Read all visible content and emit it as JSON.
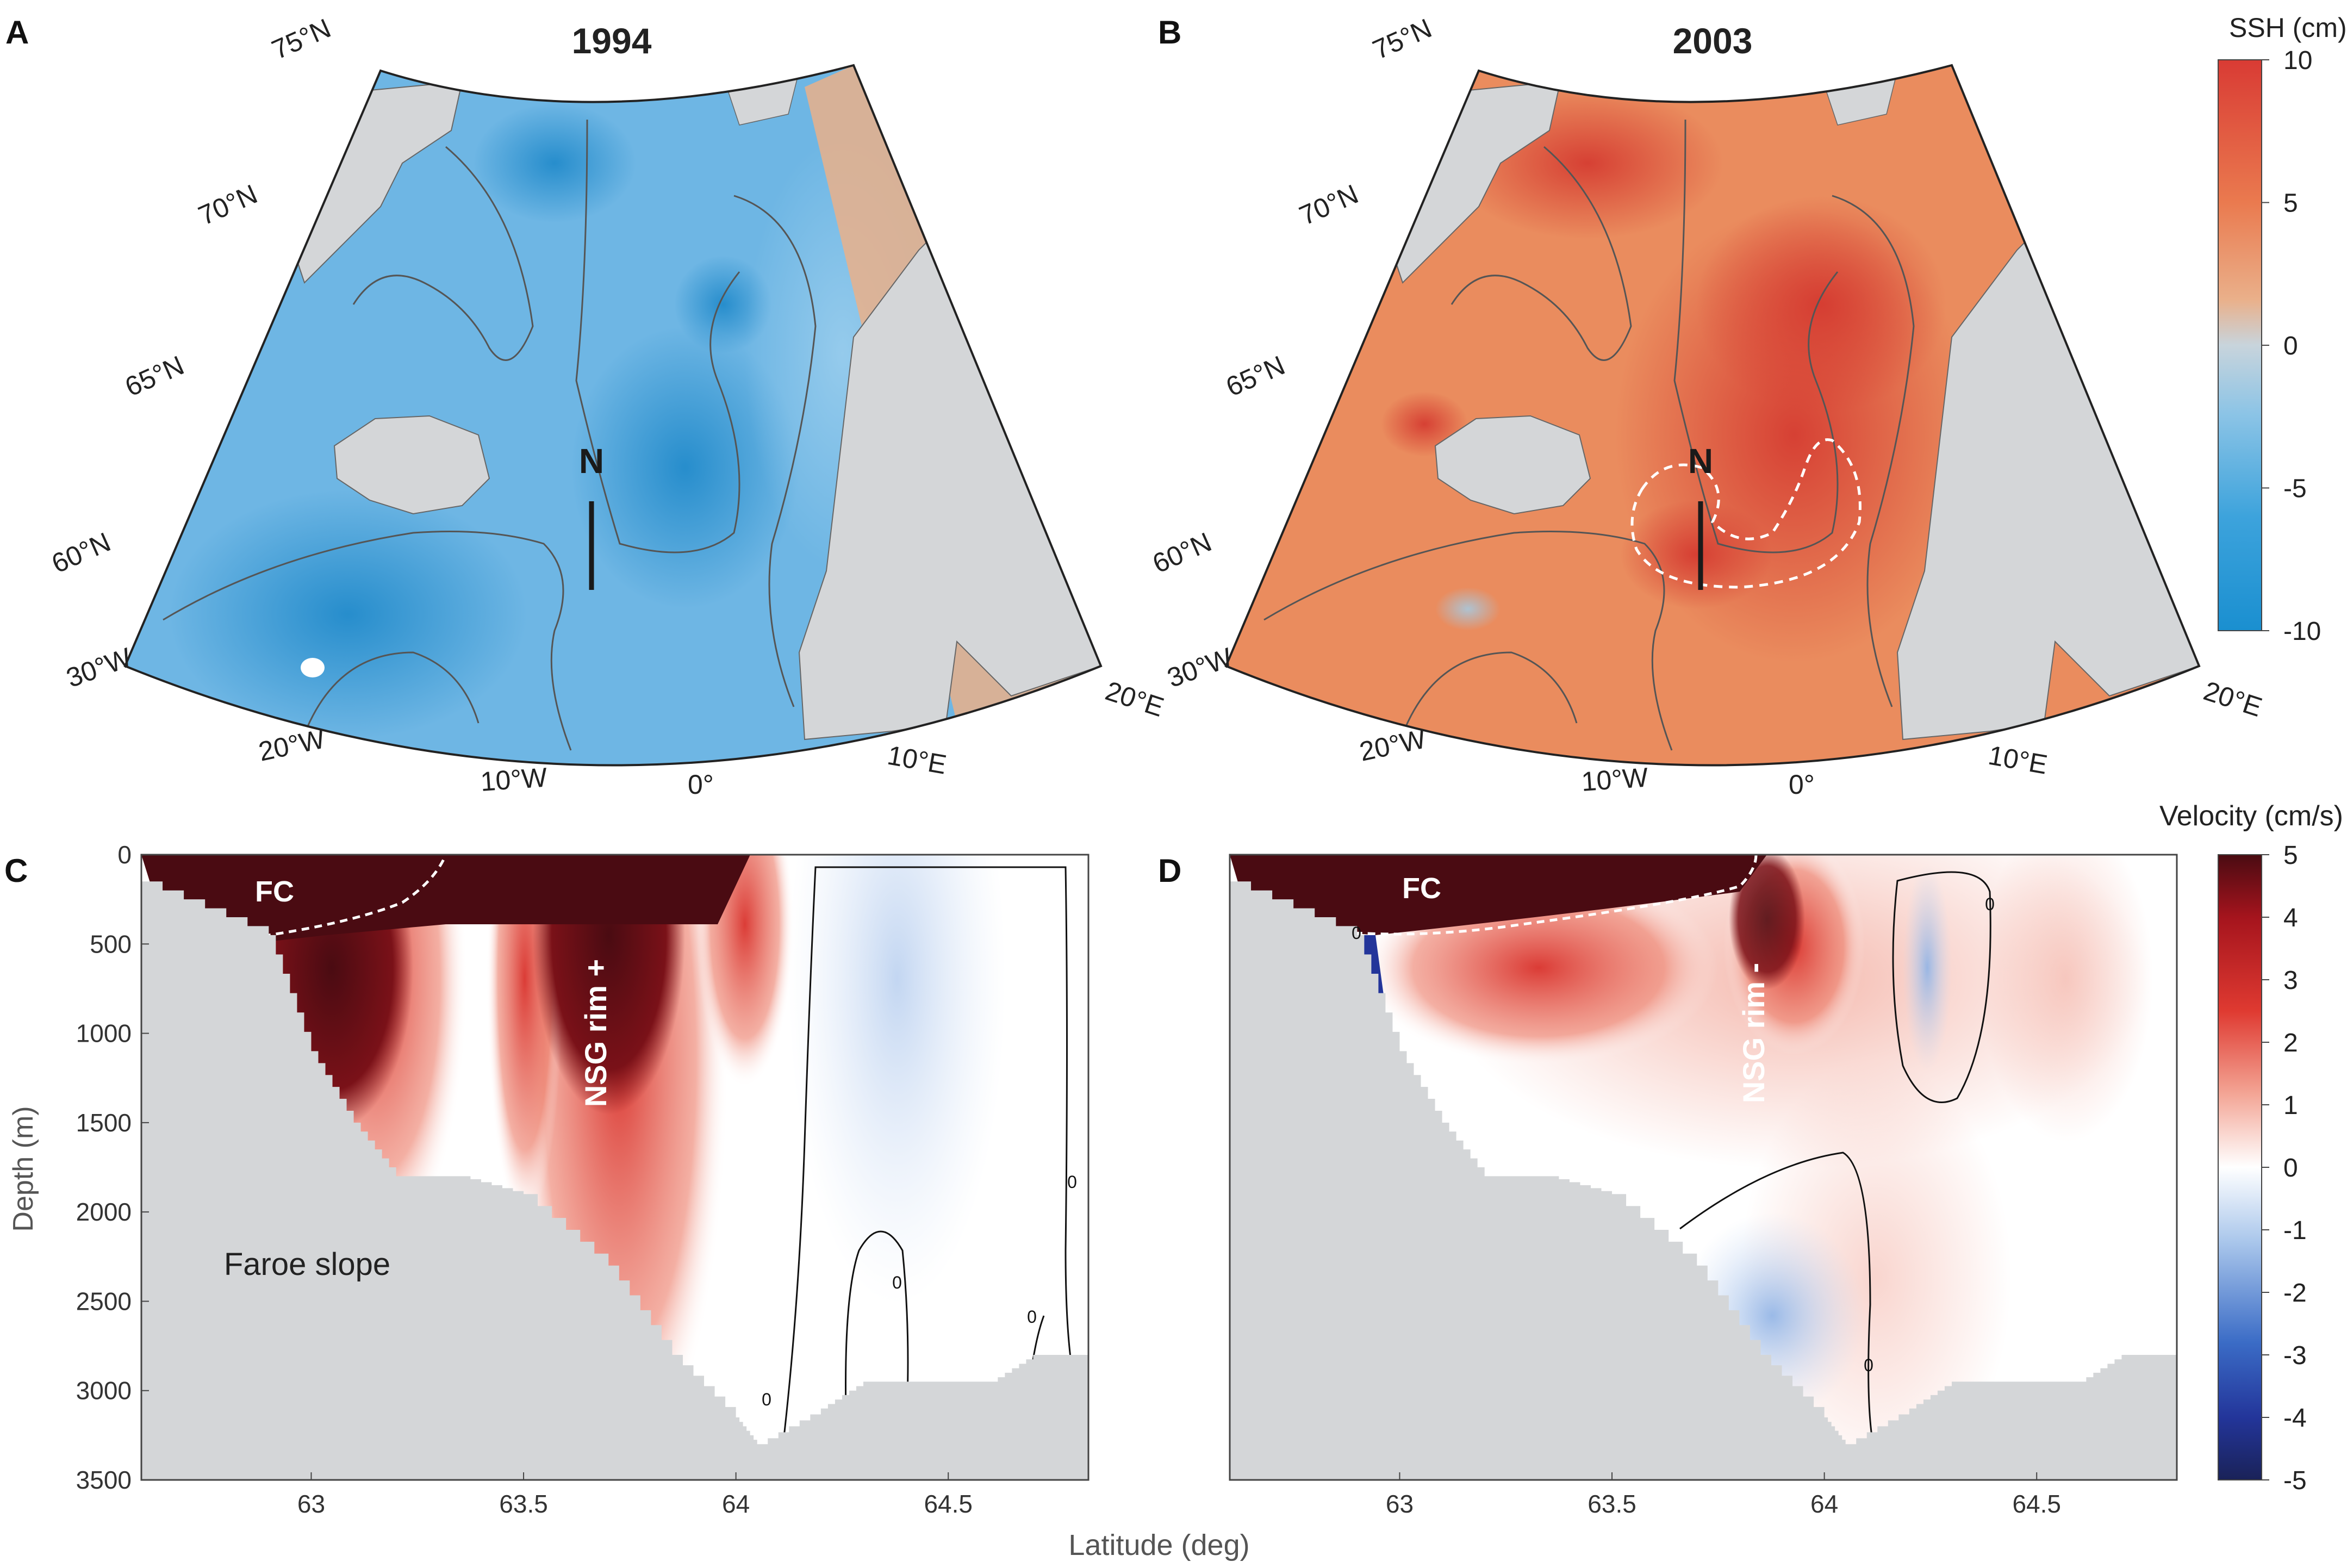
{
  "colors": {
    "ssh_low": "#1a8fd0",
    "ssh_mid": "#c8d4dc",
    "ssh_high": "#d93b34",
    "vel_low": "#1f2a6e",
    "vel_mid": "#ffffff",
    "vel_high": "#4a0b12",
    "land": "#d4d6d8",
    "contour": "#555555"
  },
  "chart_data": [
    {
      "type": "heatmap",
      "panel": "A",
      "title": "1994",
      "lat_labels": [
        "75°N",
        "70°N",
        "65°N",
        "60°N"
      ],
      "lon_labels": [
        "30°W",
        "20°W",
        "10°W",
        "0°",
        "10°E",
        "20°E"
      ],
      "lon_range": [
        -30,
        20
      ],
      "lat_range": [
        58,
        76
      ],
      "section_marker": "N",
      "description_values": {
        "mean_ssh_cm": -4
      }
    },
    {
      "type": "heatmap",
      "panel": "B",
      "title": "2003",
      "lat_labels": [
        "75°N",
        "70°N",
        "65°N",
        "60°N"
      ],
      "lon_labels": [
        "30°W",
        "20°W",
        "10°W",
        "0°",
        "10°E",
        "20°E"
      ],
      "lon_range": [
        -30,
        20
      ],
      "lat_range": [
        58,
        76
      ],
      "section_marker": "N",
      "description_values": {
        "mean_ssh_cm": 4
      }
    },
    {
      "type": "colorbar",
      "label": "SSH (cm)",
      "ticks": [
        "10",
        "5",
        "0",
        "-5",
        "-10"
      ],
      "range": [
        -10,
        10
      ]
    },
    {
      "type": "heatmap",
      "panel": "C",
      "xlabel": "Latitude (deg)",
      "ylabel": "Depth (m)",
      "xticks": [
        "63",
        "63.5",
        "64",
        "64.5"
      ],
      "xtick_values": [
        63,
        63.5,
        64,
        64.5
      ],
      "yticks": [
        "0",
        "500",
        "1000",
        "1500",
        "2000",
        "2500",
        "3000",
        "3500"
      ],
      "ytick_values": [
        0,
        500,
        1000,
        1500,
        2000,
        2500,
        3000,
        3500
      ],
      "xlim": [
        62.6,
        64.83
      ],
      "ylim": [
        0,
        3500
      ],
      "annotations": [
        "FC",
        "NSG rim +",
        "Faroe slope"
      ],
      "contour_labels": [
        "0",
        "0",
        "0",
        "0"
      ],
      "bathymetry_depth_m": [
        [
          62.6,
          150
        ],
        [
          62.9,
          450
        ],
        [
          63.0,
          1100
        ],
        [
          63.1,
          1500
        ],
        [
          63.2,
          1800
        ],
        [
          63.35,
          1800
        ],
        [
          63.5,
          1900
        ],
        [
          63.7,
          2300
        ],
        [
          63.85,
          2800
        ],
        [
          64.0,
          3150
        ],
        [
          64.05,
          3300
        ],
        [
          64.2,
          3100
        ],
        [
          64.3,
          2950
        ],
        [
          64.6,
          2950
        ],
        [
          64.7,
          2800
        ],
        [
          64.83,
          2800
        ]
      ]
    },
    {
      "type": "heatmap",
      "panel": "D",
      "xlabel": "Latitude (deg)",
      "xticks": [
        "63",
        "63.5",
        "64",
        "64.5"
      ],
      "xtick_values": [
        63,
        63.5,
        64,
        64.5
      ],
      "xlim": [
        62.6,
        64.83
      ],
      "ylim": [
        0,
        3500
      ],
      "annotations": [
        "FC",
        "NSG rim -"
      ],
      "contour_labels": [
        "0",
        "0",
        "0"
      ],
      "bathymetry_depth_m": [
        [
          62.6,
          150
        ],
        [
          62.9,
          450
        ],
        [
          63.0,
          1100
        ],
        [
          63.1,
          1500
        ],
        [
          63.2,
          1800
        ],
        [
          63.35,
          1800
        ],
        [
          63.5,
          1900
        ],
        [
          63.7,
          2300
        ],
        [
          63.85,
          2800
        ],
        [
          64.0,
          3150
        ],
        [
          64.05,
          3300
        ],
        [
          64.2,
          3100
        ],
        [
          64.3,
          2950
        ],
        [
          64.6,
          2950
        ],
        [
          64.7,
          2800
        ],
        [
          64.83,
          2800
        ]
      ]
    },
    {
      "type": "colorbar",
      "label": "Velocity (cm/s)",
      "ticks": [
        "5",
        "4",
        "3",
        "2",
        "1",
        "0",
        "-1",
        "-2",
        "-3",
        "-4",
        "-5"
      ],
      "range": [
        -5,
        5
      ]
    }
  ]
}
